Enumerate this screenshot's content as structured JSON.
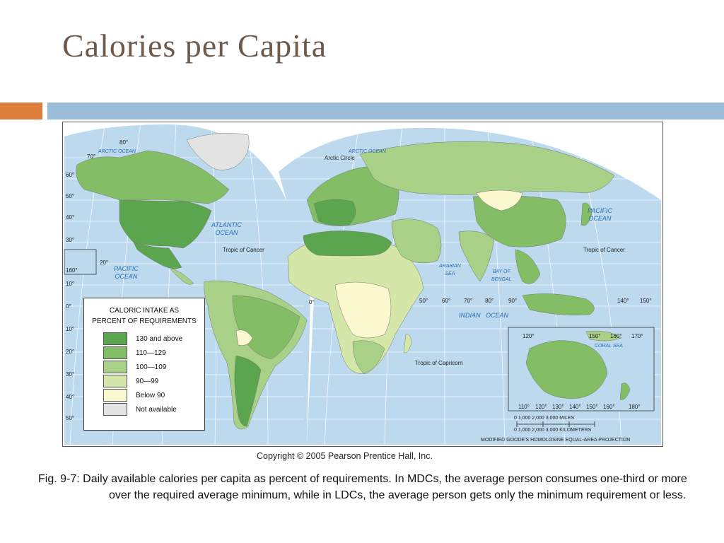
{
  "slide": {
    "title": "Calories per Capita",
    "copyright": "Copyright © 2005 Pearson Prentice Hall, Inc.",
    "caption": "Fig. 9-7: Daily available calories per capita as percent of requirements. In MDCs, the average person consumes one-third or more over the required average minimum, while in LDCs, the average person gets only the minimum requirement or less."
  },
  "colors": {
    "accent_orange": "#de7e3d",
    "accent_blue": "#9bbcd9",
    "ocean": "#bcd9ee",
    "title": "#6e5a4a"
  },
  "legend": {
    "title_line1": "CALORIC INTAKE AS",
    "title_line2": "PERCENT OF REQUIREMENTS",
    "items": [
      {
        "label": "130 and above",
        "color": "#5aa54e"
      },
      {
        "label": "110—129",
        "color": "#83bd66"
      },
      {
        "label": "100—109",
        "color": "#a8d086"
      },
      {
        "label": "90—99",
        "color": "#d5e7a8"
      },
      {
        "label": "Below 90",
        "color": "#fbf8d0"
      },
      {
        "label": "Not available",
        "color": "#e3e3e3"
      }
    ]
  },
  "map": {
    "arctic_ocean": "ARCTIC OCEAN",
    "atlantic_ocean_1": "ATLANTIC",
    "atlantic_ocean_2": "OCEAN",
    "pacific_ocean_west_1": "PACIFIC",
    "pacific_ocean_west_2": "OCEAN",
    "pacific_ocean_east_1": "PACIFIC",
    "pacific_ocean_east_2": "OCEAN",
    "indian_ocean": "INDIAN",
    "indian_ocean_2": "OCEAN",
    "arabian_sea_1": "ARABIAN",
    "arabian_sea_2": "SEA",
    "bay_of_bengal_1": "BAY OF",
    "bay_of_bengal_2": "BENGAL",
    "coral_sea": "CORAL SEA",
    "arctic_circle": "Arctic Circle",
    "tropic_of_cancer": "Tropic of Cancer",
    "tropic_of_cancer_east": "Tropic of Cancer",
    "tropic_of_capricorn": "Tropic of Capricorn",
    "scale_miles": "0        1,000        2,000        3,000 MILES",
    "scale_km": "0    1,000  2,000  3,000 KILOMETERS",
    "projection": "MODIFIED GOODE'S HOMOLOSINE EQUAL-AREA PROJECTION",
    "lat_labels_left": [
      "80°",
      "70°",
      "60°",
      "50°",
      "40°",
      "30°",
      "20°",
      "10°",
      "0°",
      "10°",
      "20°",
      "30°",
      "40°",
      "50°"
    ],
    "lon_labels": [
      "160°",
      "0°",
      "50°",
      "60°",
      "70°",
      "80°",
      "90°",
      "140°",
      "150°"
    ],
    "australia_lon_top": [
      "120°",
      "150°",
      "160°",
      "170°"
    ],
    "australia_lon_bottom": [
      "110°",
      "120°",
      "130°",
      "140°",
      "150°",
      "160°",
      "180°"
    ]
  }
}
